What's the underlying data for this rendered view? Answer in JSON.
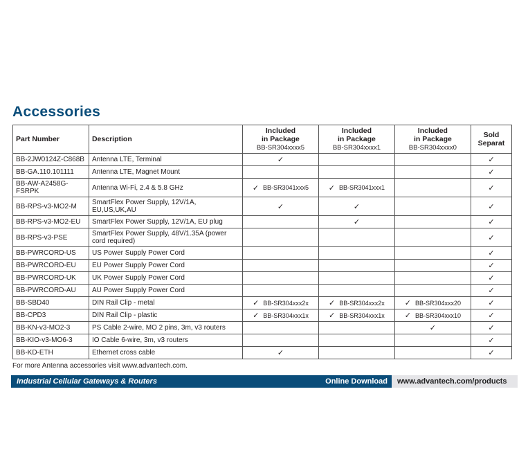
{
  "title": "Accessories",
  "columns": {
    "partNumber": "Part Number",
    "description": "Description",
    "pkg5_a": "Included",
    "pkg5_b": "in Package",
    "pkg5_sub": "BB-SR304xxxx5",
    "pkg1_a": "Included",
    "pkg1_b": "in Package",
    "pkg1_sub": "BB-SR304xxxx1",
    "pkg0_a": "Included",
    "pkg0_b": "in Package",
    "pkg0_sub": "BB-SR304xxxx0",
    "sold_a": "Sold",
    "sold_b": "Separat"
  },
  "rows": [
    {
      "pn": "BB-2JW0124Z-C868B",
      "desc": "Antenna LTE, Terminal",
      "p5": "✓",
      "p5n": "",
      "p1": "",
      "p1n": "",
      "p0": "",
      "p0n": "",
      "sold": "✓"
    },
    {
      "pn": "BB-GA.110.101111",
      "desc": "Antenna LTE, Magnet Mount",
      "p5": "",
      "p5n": "",
      "p1": "",
      "p1n": "",
      "p0": "",
      "p0n": "",
      "sold": "✓"
    },
    {
      "pn": "BB-AW-A2458G-FSRPK",
      "desc": "Antenna Wi-Fi, 2.4 & 5.8 GHz",
      "p5": "✓",
      "p5n": "BB-SR3041xxx5",
      "p1": "✓",
      "p1n": "BB-SR3041xxx1",
      "p0": "",
      "p0n": "",
      "sold": "✓"
    },
    {
      "pn": "BB-RPS-v3-MO2-M",
      "desc": "SmartFlex Power Supply, 12V/1A, EU,US,UK,AU",
      "p5": "✓",
      "p5n": "",
      "p1": "✓",
      "p1n": "",
      "p0": "",
      "p0n": "",
      "sold": "✓"
    },
    {
      "pn": "BB-RPS-v3-MO2-EU",
      "desc": "SmartFlex Power Supply, 12V/1A, EU plug",
      "p5": "",
      "p5n": "",
      "p1": "✓",
      "p1n": "",
      "p0": "",
      "p0n": "",
      "sold": "✓"
    },
    {
      "pn": "BB-RPS-v3-PSE",
      "desc": "SmartFlex Power Supply, 48V/1.35A (power cord required)",
      "p5": "",
      "p5n": "",
      "p1": "",
      "p1n": "",
      "p0": "",
      "p0n": "",
      "sold": "✓"
    },
    {
      "pn": "BB-PWRCORD-US",
      "desc": "US Power Supply Power Cord",
      "p5": "",
      "p5n": "",
      "p1": "",
      "p1n": "",
      "p0": "",
      "p0n": "",
      "sold": "✓"
    },
    {
      "pn": "BB-PWRCORD-EU",
      "desc": "EU Power Supply Power Cord",
      "p5": "",
      "p5n": "",
      "p1": "",
      "p1n": "",
      "p0": "",
      "p0n": "",
      "sold": "✓"
    },
    {
      "pn": "BB-PWRCORD-UK",
      "desc": "UK Power Supply Power Cord",
      "p5": "",
      "p5n": "",
      "p1": "",
      "p1n": "",
      "p0": "",
      "p0n": "",
      "sold": "✓"
    },
    {
      "pn": "BB-PWRCORD-AU",
      "desc": "AU Power Supply Power Cord",
      "p5": "",
      "p5n": "",
      "p1": "",
      "p1n": "",
      "p0": "",
      "p0n": "",
      "sold": "✓"
    },
    {
      "pn": "BB-SBD40",
      "desc": "DIN Rail Clip - metal",
      "p5": "✓",
      "p5n": "BB-SR304xxx2x",
      "p1": "✓",
      "p1n": "BB-SR304xxx2x",
      "p0": "✓",
      "p0n": "BB-SR304xxx20",
      "sold": "✓"
    },
    {
      "pn": "BB-CPD3",
      "desc": "DIN Rail Clip - plastic",
      "p5": "✓",
      "p5n": "BB-SR304xxx1x",
      "p1": "✓",
      "p1n": "BB-SR304xxx1x",
      "p0": "✓",
      "p0n": "BB-SR304xxx10",
      "sold": "✓"
    },
    {
      "pn": "BB-KN-v3-MO2-3",
      "desc": "PS Cable 2-wire, MO 2 pins, 3m, v3 routers",
      "p5": "",
      "p5n": "",
      "p1": "",
      "p1n": "",
      "p0": "✓",
      "p0n": "",
      "sold": "✓"
    },
    {
      "pn": "BB-KIO-v3-MO6-3",
      "desc": "IO Cable 6-wire, 3m, v3 routers",
      "p5": "",
      "p5n": "",
      "p1": "",
      "p1n": "",
      "p0": "",
      "p0n": "",
      "sold": "✓"
    },
    {
      "pn": "BB-KD-ETH",
      "desc": "Ethernet cross cable",
      "p5": "✓",
      "p5n": "",
      "p1": "",
      "p1n": "",
      "p0": "",
      "p0n": "",
      "sold": "✓"
    }
  ],
  "footNote": "For more Antenna accessories visit www.advantech.com.",
  "footer": {
    "left": "Industrial Cellular Gateways & Routers",
    "mid": "Online Download",
    "right": "www.advantech.com/products"
  },
  "colors": {
    "heading": "#0a4d7a",
    "barDark": "#0a4d7a",
    "barLight": "#e5e5e8",
    "border": "#555555",
    "text": "#231f20"
  }
}
